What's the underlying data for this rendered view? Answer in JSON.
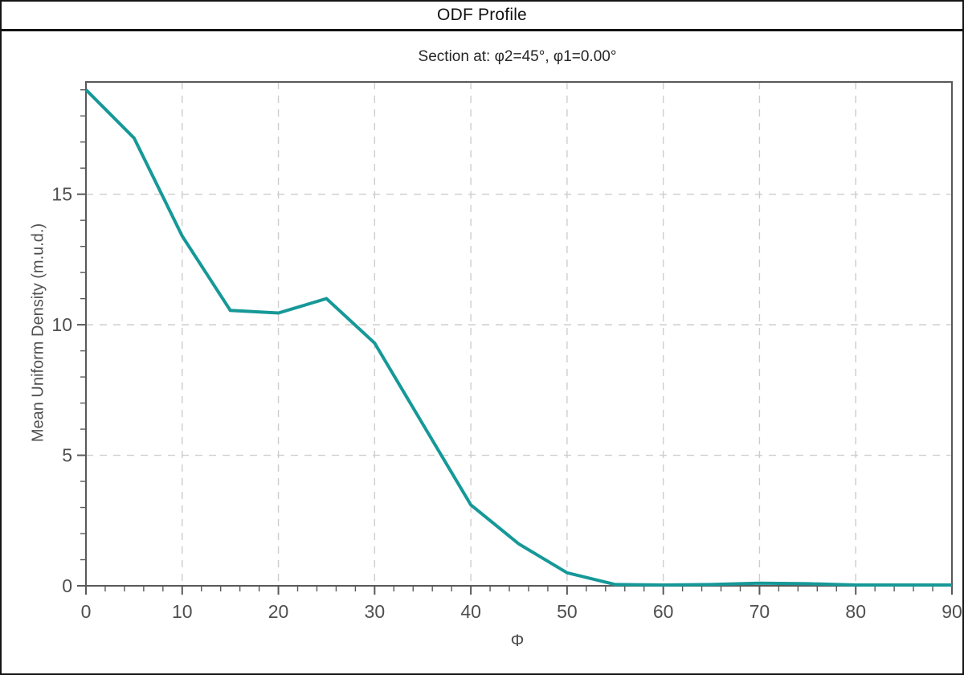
{
  "window": {
    "title": "ODF Profile"
  },
  "chart_data": {
    "type": "line",
    "title": "ODF Profile",
    "subtitle": "Section at: φ2=45°, φ1=0.00°",
    "xlabel": "Φ",
    "ylabel": "Mean Uniform Density (m.u.d.)",
    "x": [
      0,
      5,
      10,
      15,
      20,
      25,
      30,
      35,
      40,
      45,
      50,
      55,
      60,
      65,
      70,
      75,
      80,
      85,
      90
    ],
    "y": [
      19.0,
      17.15,
      13.4,
      10.55,
      10.45,
      11.0,
      9.3,
      6.2,
      3.1,
      1.6,
      0.5,
      0.05,
      0.03,
      0.05,
      0.1,
      0.08,
      0.03,
      0.03,
      0.03
    ],
    "xlim": [
      0,
      90
    ],
    "ylim": [
      0,
      19.3
    ],
    "x_major_ticks": [
      0,
      10,
      20,
      30,
      40,
      50,
      60,
      70,
      80,
      90
    ],
    "x_minor_step": 2,
    "y_major_ticks": [
      0,
      5,
      10,
      15
    ],
    "y_minor_step": 1,
    "grid": "dashed-major",
    "legend_position": "none",
    "colors": {
      "line": "#169898",
      "grid": "#cdcdcd",
      "spine": "#595959",
      "tick": "#595959",
      "tick_label": "#4f4f4f",
      "frame": "#141414"
    }
  }
}
